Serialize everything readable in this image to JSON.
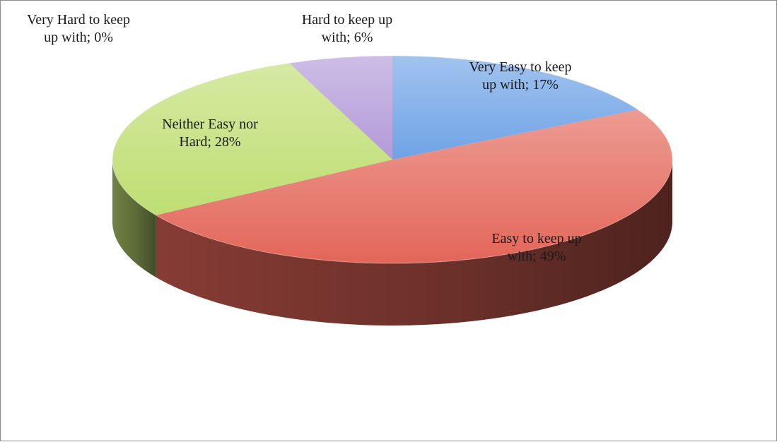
{
  "chart_data": {
    "type": "pie",
    "style": "3d",
    "title": "",
    "slices": [
      {
        "label": "Very Easy to keep up with",
        "value": 17,
        "display": "17%",
        "label_lines": [
          "Very Easy to keep",
          "up with; 17%"
        ],
        "color": "#6fa3e6"
      },
      {
        "label": "Easy to keep up with",
        "value": 49,
        "display": "49%",
        "label_lines": [
          "Easy to keep up",
          "with; 49%"
        ],
        "color": "#e36659"
      },
      {
        "label": "Neither Easy nor Hard",
        "value": 28,
        "display": "28%",
        "label_lines": [
          "Neither Easy nor",
          "Hard; 28%"
        ],
        "color": "#bfde72"
      },
      {
        "label": "Very Hard to keep up with",
        "value": 0,
        "display": "0%",
        "label_lines": [
          "Very Hard to keep",
          "up with; 0%"
        ],
        "color": "#3b78c4"
      },
      {
        "label": "Hard to keep up with",
        "value": 6,
        "display": "6%",
        "label_lines": [
          "Hard to keep up",
          "with; 6%"
        ],
        "color": "#b39ad8"
      }
    ]
  }
}
